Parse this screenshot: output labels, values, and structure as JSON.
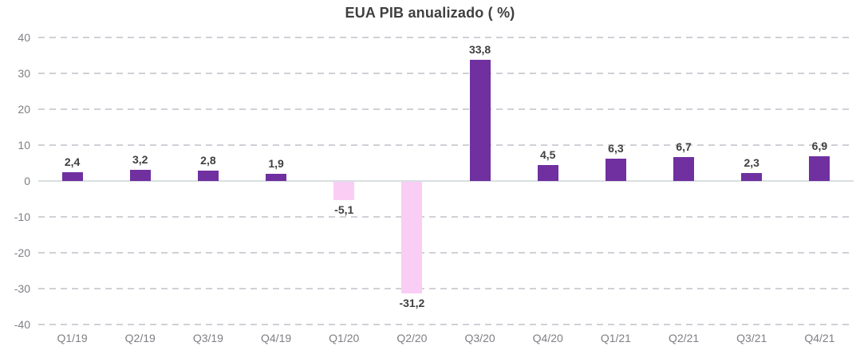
{
  "chart_data": {
    "type": "bar",
    "title": "EUA PIB anualizado ( %)",
    "categories": [
      "Q1/19",
      "Q2/19",
      "Q3/19",
      "Q4/19",
      "Q1/20",
      "Q2/20",
      "Q3/20",
      "Q4/20",
      "Q1/21",
      "Q2/21",
      "Q3/21",
      "Q4/21"
    ],
    "values": [
      2.4,
      3.2,
      2.8,
      1.9,
      -5.1,
      -31.2,
      33.8,
      4.5,
      6.3,
      6.7,
      2.3,
      6.9
    ],
    "value_labels": [
      "2,4",
      "3,2",
      "2,8",
      "1,9",
      "-5,1",
      "-31,2",
      "33,8",
      "4,5",
      "6,3",
      "6,7",
      "2,3",
      "6,9"
    ],
    "xlabel": "",
    "ylabel": "",
    "ylim": [
      -40,
      40
    ],
    "ytick_step": 10,
    "yticks": [
      40,
      30,
      20,
      10,
      0,
      -10,
      -20,
      -30,
      -40
    ],
    "grid": "horizontal-dashed",
    "legend_position": "none",
    "colors": {
      "positive_bar": "#7030A0",
      "negative_bar": "#FACDF5",
      "data_label": "#404040",
      "axis_label": "#7F7F85",
      "gridline": "#D2CFD6",
      "zero_line": "#D8DEE2",
      "title": "#3F3F3F"
    }
  }
}
